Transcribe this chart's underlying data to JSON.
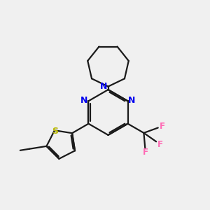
{
  "bg_color": "#f0f0f0",
  "bond_color": "#1a1a1a",
  "N_color": "#0000ee",
  "S_color": "#b8b800",
  "F_color": "#ff69b4",
  "line_width": 1.6,
  "figsize": [
    3.0,
    3.0
  ],
  "dpi": 100,
  "xlim": [
    0,
    10
  ],
  "ylim": [
    0,
    10
  ]
}
